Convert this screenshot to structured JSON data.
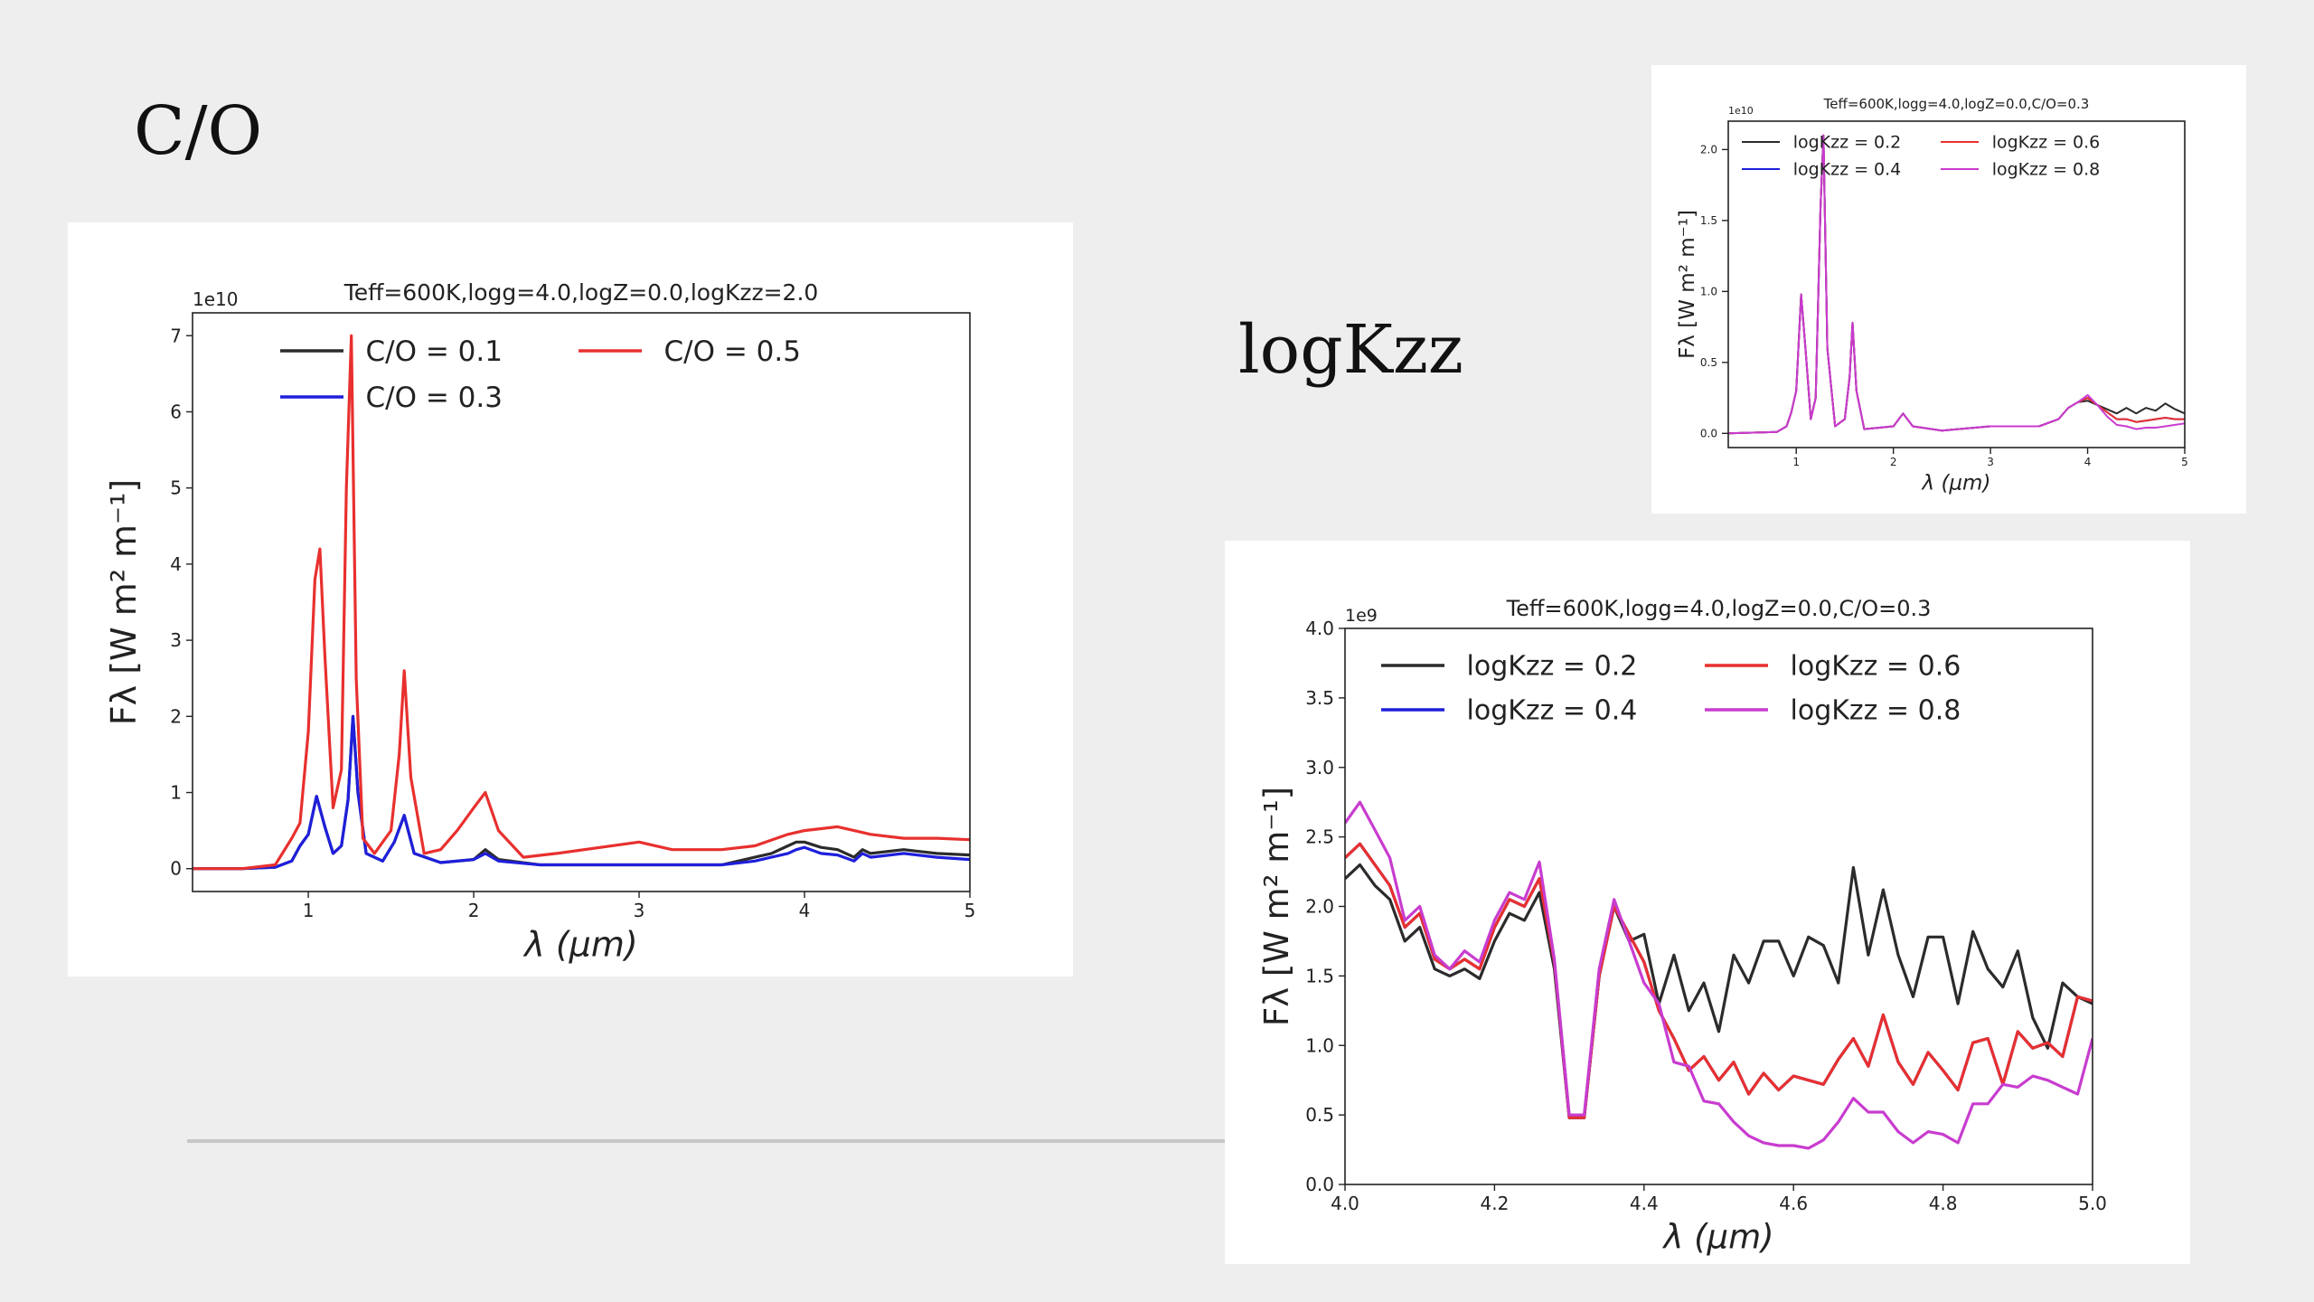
{
  "slide": {
    "title_co": "C/O",
    "title_kzz": "logKzz"
  },
  "chart_data": [
    {
      "id": "co",
      "type": "line",
      "title": "Teff=600K,logg=4.0,logZ=0.0,logKzz=2.0",
      "xlabel": "λ (μm)",
      "ylabel": "Fλ [W m² m⁻¹]",
      "offset_label": "1e10",
      "xlim": [
        0.3,
        5.0
      ],
      "ylim": [
        -0.3,
        7.3
      ],
      "xticks": [
        1,
        2,
        3,
        4,
        5
      ],
      "yticks": [
        0,
        1,
        2,
        3,
        4,
        5,
        6,
        7
      ],
      "legend_position": "top",
      "legend_columns": 2,
      "series": [
        {
          "name": "C/O = 0.1",
          "color": "#2b2b2b",
          "x": [
            0.3,
            0.6,
            0.8,
            0.9,
            0.95,
            1.0,
            1.05,
            1.1,
            1.15,
            1.2,
            1.24,
            1.27,
            1.3,
            1.35,
            1.45,
            1.52,
            1.58,
            1.64,
            1.8,
            2.0,
            2.07,
            2.15,
            2.4,
            3.0,
            3.5,
            3.7,
            3.8,
            3.9,
            3.95,
            4.0,
            4.1,
            4.2,
            4.3,
            4.35,
            4.4,
            4.6,
            4.8,
            5.0
          ],
          "y": [
            0,
            0,
            0.02,
            0.1,
            0.3,
            0.45,
            0.95,
            0.55,
            0.2,
            0.3,
            0.9,
            2.0,
            1.0,
            0.2,
            0.1,
            0.35,
            0.7,
            0.2,
            0.08,
            0.12,
            0.25,
            0.12,
            0.05,
            0.05,
            0.05,
            0.15,
            0.2,
            0.3,
            0.35,
            0.35,
            0.28,
            0.25,
            0.15,
            0.25,
            0.2,
            0.25,
            0.2,
            0.18
          ]
        },
        {
          "name": "C/O = 0.3",
          "color": "#1f1fdc",
          "x": [
            0.3,
            0.6,
            0.8,
            0.9,
            0.95,
            1.0,
            1.05,
            1.1,
            1.15,
            1.2,
            1.24,
            1.27,
            1.3,
            1.35,
            1.45,
            1.52,
            1.58,
            1.64,
            1.8,
            2.0,
            2.07,
            2.15,
            2.4,
            3.0,
            3.5,
            3.7,
            3.8,
            3.9,
            3.95,
            4.0,
            4.1,
            4.2,
            4.3,
            4.35,
            4.4,
            4.6,
            4.8,
            5.0
          ],
          "y": [
            0,
            0,
            0.02,
            0.1,
            0.3,
            0.45,
            0.95,
            0.55,
            0.2,
            0.3,
            0.9,
            2.0,
            1.0,
            0.2,
            0.1,
            0.35,
            0.7,
            0.2,
            0.08,
            0.12,
            0.2,
            0.1,
            0.05,
            0.05,
            0.05,
            0.1,
            0.15,
            0.2,
            0.25,
            0.28,
            0.2,
            0.18,
            0.1,
            0.2,
            0.15,
            0.2,
            0.15,
            0.12
          ]
        },
        {
          "name": "C/O = 0.5",
          "color": "#e8302e",
          "x": [
            0.3,
            0.6,
            0.8,
            0.9,
            0.95,
            1.0,
            1.04,
            1.07,
            1.1,
            1.15,
            1.2,
            1.23,
            1.26,
            1.29,
            1.33,
            1.4,
            1.5,
            1.55,
            1.58,
            1.62,
            1.7,
            1.8,
            1.9,
            2.0,
            2.07,
            2.15,
            2.3,
            2.5,
            3.0,
            3.2,
            3.5,
            3.7,
            3.9,
            4.0,
            4.2,
            4.3,
            4.4,
            4.6,
            4.8,
            5.0
          ],
          "y": [
            0,
            0,
            0.05,
            0.4,
            0.6,
            1.8,
            3.8,
            4.2,
            2.8,
            0.8,
            1.3,
            5.0,
            7.0,
            2.5,
            0.4,
            0.2,
            0.5,
            1.5,
            2.6,
            1.2,
            0.2,
            0.25,
            0.5,
            0.8,
            1.0,
            0.5,
            0.15,
            0.2,
            0.35,
            0.25,
            0.25,
            0.3,
            0.45,
            0.5,
            0.55,
            0.5,
            0.45,
            0.4,
            0.4,
            0.38
          ]
        }
      ]
    },
    {
      "id": "kzz-full",
      "type": "line",
      "title": "Teff=600K,logg=4.0,logZ=0.0,C/O=0.3",
      "xlabel": "λ (μm)",
      "ylabel": "Fλ [W m² m⁻¹]",
      "offset_label": "1e10",
      "xlim": [
        0.3,
        5.0
      ],
      "ylim": [
        -0.1,
        2.2
      ],
      "xticks": [
        1,
        2,
        3,
        4,
        5
      ],
      "yticks": [
        0.0,
        0.5,
        1.0,
        1.5,
        2.0
      ],
      "legend_position": "top",
      "legend_columns": 2,
      "series": [
        {
          "name": "logKzz = 0.2",
          "color": "#2b2b2b",
          "x": [
            0.3,
            0.8,
            0.9,
            0.95,
            1.0,
            1.05,
            1.1,
            1.15,
            1.2,
            1.25,
            1.28,
            1.32,
            1.4,
            1.5,
            1.55,
            1.58,
            1.62,
            1.7,
            2.0,
            2.1,
            2.2,
            2.5,
            3.0,
            3.5,
            3.7,
            3.8,
            3.9,
            4.0,
            4.1,
            4.2,
            4.3,
            4.4,
            4.5,
            4.6,
            4.7,
            4.8,
            4.9,
            5.0
          ],
          "y": [
            0,
            0.01,
            0.05,
            0.15,
            0.3,
            0.98,
            0.55,
            0.1,
            0.25,
            1.6,
            2.1,
            0.6,
            0.05,
            0.1,
            0.4,
            0.78,
            0.3,
            0.03,
            0.05,
            0.14,
            0.05,
            0.02,
            0.05,
            0.05,
            0.1,
            0.18,
            0.22,
            0.23,
            0.2,
            0.17,
            0.14,
            0.18,
            0.14,
            0.18,
            0.16,
            0.21,
            0.17,
            0.14
          ]
        },
        {
          "name": "logKzz = 0.4",
          "color": "#1f1fdc",
          "x": [
            0.3,
            0.8,
            0.9,
            0.95,
            1.0,
            1.05,
            1.1,
            1.15,
            1.2,
            1.25,
            1.28,
            1.32,
            1.4,
            1.5,
            1.55,
            1.58,
            1.62,
            1.7,
            2.0,
            2.1,
            2.2,
            2.5,
            3.0,
            3.5,
            3.7,
            3.8,
            3.9,
            4.0,
            4.1,
            4.2,
            4.3,
            4.4,
            4.5,
            4.6,
            4.7,
            4.8,
            4.9,
            5.0
          ],
          "y": [
            0,
            0.01,
            0.05,
            0.15,
            0.3,
            0.98,
            0.55,
            0.1,
            0.25,
            1.6,
            2.1,
            0.6,
            0.05,
            0.1,
            0.4,
            0.78,
            0.3,
            0.03,
            0.05,
            0.14,
            0.05,
            0.02,
            0.05,
            0.05,
            0.1,
            0.18,
            0.22,
            0.25,
            0.2,
            0.15,
            0.1,
            0.1,
            0.08,
            0.09,
            0.1,
            0.11,
            0.1,
            0.1
          ]
        },
        {
          "name": "logKzz = 0.6",
          "color": "#e8302e",
          "x": [
            0.3,
            0.8,
            0.9,
            0.95,
            1.0,
            1.05,
            1.1,
            1.15,
            1.2,
            1.25,
            1.28,
            1.32,
            1.4,
            1.5,
            1.55,
            1.58,
            1.62,
            1.7,
            2.0,
            2.1,
            2.2,
            2.5,
            3.0,
            3.5,
            3.7,
            3.8,
            3.9,
            4.0,
            4.1,
            4.2,
            4.3,
            4.4,
            4.5,
            4.6,
            4.7,
            4.8,
            4.9,
            5.0
          ],
          "y": [
            0,
            0.01,
            0.05,
            0.15,
            0.3,
            0.98,
            0.55,
            0.1,
            0.25,
            1.6,
            2.1,
            0.6,
            0.05,
            0.1,
            0.4,
            0.78,
            0.3,
            0.03,
            0.05,
            0.14,
            0.05,
            0.02,
            0.05,
            0.05,
            0.1,
            0.18,
            0.22,
            0.25,
            0.2,
            0.15,
            0.1,
            0.1,
            0.08,
            0.09,
            0.1,
            0.11,
            0.1,
            0.1
          ]
        },
        {
          "name": "logKzz = 0.8",
          "color": "#c83ccf",
          "x": [
            0.3,
            0.8,
            0.9,
            0.95,
            1.0,
            1.05,
            1.1,
            1.15,
            1.2,
            1.25,
            1.28,
            1.32,
            1.4,
            1.5,
            1.55,
            1.58,
            1.62,
            1.7,
            2.0,
            2.1,
            2.2,
            2.5,
            3.0,
            3.5,
            3.7,
            3.8,
            3.9,
            4.0,
            4.1,
            4.2,
            4.3,
            4.4,
            4.5,
            4.6,
            4.7,
            4.8,
            4.9,
            5.0
          ],
          "y": [
            0,
            0.01,
            0.05,
            0.15,
            0.3,
            0.98,
            0.55,
            0.1,
            0.25,
            1.6,
            2.1,
            0.6,
            0.05,
            0.1,
            0.4,
            0.78,
            0.3,
            0.03,
            0.05,
            0.14,
            0.05,
            0.02,
            0.05,
            0.05,
            0.1,
            0.18,
            0.22,
            0.27,
            0.2,
            0.12,
            0.06,
            0.05,
            0.03,
            0.04,
            0.04,
            0.05,
            0.06,
            0.07
          ]
        }
      ]
    },
    {
      "id": "kzz-zoom",
      "type": "line",
      "title": "Teff=600K,logg=4.0,logZ=0.0,C/O=0.3",
      "xlabel": "λ (μm)",
      "ylabel": "Fλ [W m² m⁻¹]",
      "offset_label": "1e9",
      "xlim": [
        4.0,
        5.0
      ],
      "ylim": [
        0.0,
        4.0
      ],
      "xticks": [
        4.0,
        4.2,
        4.4,
        4.6,
        4.8,
        5.0
      ],
      "yticks": [
        0.0,
        0.5,
        1.0,
        1.5,
        2.0,
        2.5,
        3.0,
        3.5,
        4.0
      ],
      "legend_position": "top",
      "legend_columns": 2,
      "series": [
        {
          "name": "logKzz = 0.2",
          "color": "#2b2b2b",
          "x": [
            4.0,
            4.02,
            4.04,
            4.06,
            4.08,
            4.1,
            4.12,
            4.14,
            4.16,
            4.18,
            4.2,
            4.22,
            4.24,
            4.26,
            4.28,
            4.3,
            4.32,
            4.34,
            4.36,
            4.38,
            4.4,
            4.42,
            4.44,
            4.46,
            4.48,
            4.5,
            4.52,
            4.54,
            4.56,
            4.58,
            4.6,
            4.62,
            4.64,
            4.66,
            4.68,
            4.7,
            4.72,
            4.74,
            4.76,
            4.78,
            4.8,
            4.82,
            4.84,
            4.86,
            4.88,
            4.9,
            4.92,
            4.94,
            4.96,
            4.98,
            5.0
          ],
          "y": [
            2.2,
            2.3,
            2.15,
            2.05,
            1.75,
            1.85,
            1.55,
            1.5,
            1.55,
            1.48,
            1.75,
            1.95,
            1.9,
            2.1,
            1.55,
            0.48,
            0.48,
            1.5,
            2.0,
            1.75,
            1.8,
            1.3,
            1.65,
            1.25,
            1.45,
            1.1,
            1.65,
            1.45,
            1.75,
            1.75,
            1.5,
            1.78,
            1.72,
            1.45,
            2.28,
            1.65,
            2.12,
            1.65,
            1.35,
            1.78,
            1.78,
            1.3,
            1.82,
            1.55,
            1.42,
            1.68,
            1.2,
            0.98,
            1.45,
            1.35,
            1.3
          ]
        },
        {
          "name": "logKzz = 0.4",
          "color": "#1f1fdc",
          "x": [
            4.0,
            4.02,
            4.04,
            4.06,
            4.08,
            4.1,
            4.12,
            4.14,
            4.16,
            4.18,
            4.2,
            4.22,
            4.24,
            4.26,
            4.28,
            4.3,
            4.32,
            4.34,
            4.36,
            4.38,
            4.4,
            4.42,
            4.44,
            4.46,
            4.48,
            4.5,
            4.52,
            4.54,
            4.56,
            4.58,
            4.6,
            4.62,
            4.64,
            4.66,
            4.68,
            4.7,
            4.72,
            4.74,
            4.76,
            4.78,
            4.8,
            4.82,
            4.84,
            4.86,
            4.88,
            4.9,
            4.92,
            4.94,
            4.96,
            4.98,
            5.0
          ],
          "y": [
            2.35,
            2.45,
            2.3,
            2.15,
            1.85,
            1.95,
            1.62,
            1.55,
            1.62,
            1.55,
            1.85,
            2.05,
            2.0,
            2.2,
            1.6,
            0.48,
            0.48,
            1.5,
            2.0,
            1.8,
            1.6,
            1.25,
            1.05,
            0.82,
            0.92,
            0.75,
            0.88,
            0.65,
            0.8,
            0.68,
            0.78,
            0.75,
            0.72,
            0.9,
            1.05,
            0.85,
            1.22,
            0.88,
            0.72,
            0.95,
            0.82,
            0.68,
            1.02,
            1.05,
            0.72,
            1.1,
            0.98,
            1.02,
            0.92,
            1.35,
            1.32
          ]
        },
        {
          "name": "logKzz = 0.6",
          "color": "#e8302e",
          "x": [
            4.0,
            4.02,
            4.04,
            4.06,
            4.08,
            4.1,
            4.12,
            4.14,
            4.16,
            4.18,
            4.2,
            4.22,
            4.24,
            4.26,
            4.28,
            4.3,
            4.32,
            4.34,
            4.36,
            4.38,
            4.4,
            4.42,
            4.44,
            4.46,
            4.48,
            4.5,
            4.52,
            4.54,
            4.56,
            4.58,
            4.6,
            4.62,
            4.64,
            4.66,
            4.68,
            4.7,
            4.72,
            4.74,
            4.76,
            4.78,
            4.8,
            4.82,
            4.84,
            4.86,
            4.88,
            4.9,
            4.92,
            4.94,
            4.96,
            4.98,
            5.0
          ],
          "y": [
            2.35,
            2.45,
            2.3,
            2.15,
            1.85,
            1.95,
            1.62,
            1.55,
            1.62,
            1.55,
            1.85,
            2.05,
            2.0,
            2.2,
            1.6,
            0.48,
            0.48,
            1.5,
            2.0,
            1.8,
            1.6,
            1.25,
            1.05,
            0.82,
            0.92,
            0.75,
            0.88,
            0.65,
            0.8,
            0.68,
            0.78,
            0.75,
            0.72,
            0.9,
            1.05,
            0.85,
            1.22,
            0.88,
            0.72,
            0.95,
            0.82,
            0.68,
            1.02,
            1.05,
            0.72,
            1.1,
            0.98,
            1.02,
            0.92,
            1.35,
            1.32
          ]
        },
        {
          "name": "logKzz = 0.8",
          "color": "#c83ccf",
          "x": [
            4.0,
            4.02,
            4.04,
            4.06,
            4.08,
            4.1,
            4.12,
            4.14,
            4.16,
            4.18,
            4.2,
            4.22,
            4.24,
            4.26,
            4.28,
            4.3,
            4.32,
            4.34,
            4.36,
            4.38,
            4.4,
            4.42,
            4.44,
            4.46,
            4.48,
            4.5,
            4.52,
            4.54,
            4.56,
            4.58,
            4.6,
            4.62,
            4.64,
            4.66,
            4.68,
            4.7,
            4.72,
            4.74,
            4.76,
            4.78,
            4.8,
            4.82,
            4.84,
            4.86,
            4.88,
            4.9,
            4.92,
            4.94,
            4.96,
            4.98,
            5.0
          ],
          "y": [
            2.6,
            2.75,
            2.55,
            2.35,
            1.9,
            2.0,
            1.65,
            1.55,
            1.68,
            1.6,
            1.9,
            2.1,
            2.05,
            2.32,
            1.62,
            0.5,
            0.5,
            1.55,
            2.05,
            1.75,
            1.45,
            1.3,
            0.88,
            0.85,
            0.6,
            0.58,
            0.45,
            0.35,
            0.3,
            0.28,
            0.28,
            0.26,
            0.32,
            0.45,
            0.62,
            0.52,
            0.52,
            0.38,
            0.3,
            0.38,
            0.36,
            0.3,
            0.58,
            0.58,
            0.72,
            0.7,
            0.78,
            0.75,
            0.7,
            0.65,
            1.05
          ]
        }
      ]
    }
  ]
}
